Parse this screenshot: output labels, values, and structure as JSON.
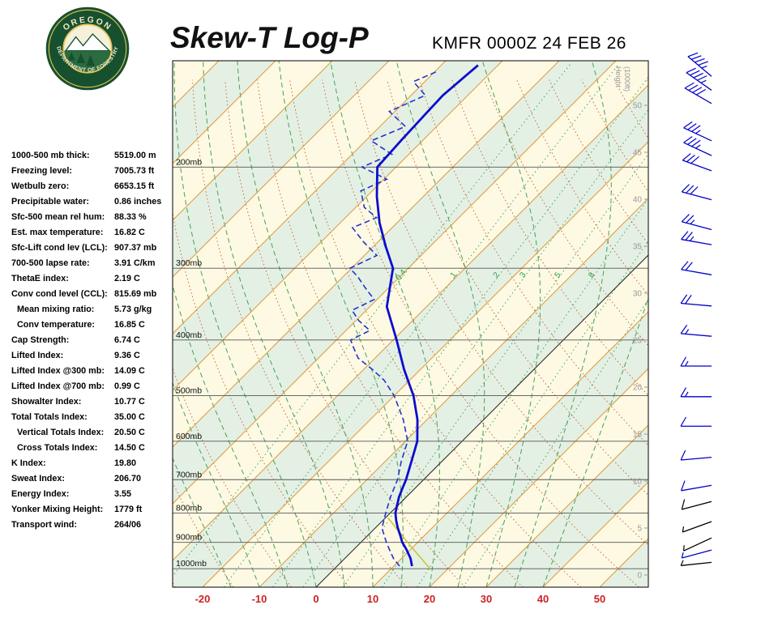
{
  "header": {
    "title": "Skew-T Log-P",
    "station": "KMFR 0000Z 24 FEB 26"
  },
  "logo": {
    "top_text": "OREGON",
    "bottom_text": "DEPARTMENT OF FORESTRY"
  },
  "indices": [
    {
      "label": "1000-500 mb thick:",
      "value": "5519.00 m",
      "indent": false
    },
    {
      "label": "Freezing level:",
      "value": "7005.73 ft",
      "indent": false
    },
    {
      "label": "Wetbulb zero:",
      "value": "6653.15 ft",
      "indent": false
    },
    {
      "label": "Precipitable water:",
      "value": "0.86 inches",
      "indent": false
    },
    {
      "label": "Sfc-500 mean rel hum:",
      "value": "88.33 %",
      "indent": false
    },
    {
      "label": "Est. max temperature:",
      "value": "16.82 C",
      "indent": false
    },
    {
      "label": "Sfc-Lift cond lev (LCL):",
      "value": "907.37 mb",
      "indent": false
    },
    {
      "label": "700-500 lapse rate:",
      "value": "3.91 C/km",
      "indent": false
    },
    {
      "label": "ThetaE index:",
      "value": "2.19 C",
      "indent": false
    },
    {
      "label": "Conv cond level (CCL):",
      "value": "815.69 mb",
      "indent": false
    },
    {
      "label": "Mean mixing ratio:",
      "value": "5.73 g/kg",
      "indent": true
    },
    {
      "label": "Conv temperature:",
      "value": "16.85 C",
      "indent": true
    },
    {
      "label": "Cap Strength:",
      "value": "6.74 C",
      "indent": false
    },
    {
      "label": "Lifted Index:",
      "value": "9.36 C",
      "indent": false
    },
    {
      "label": "Lifted Index @300 mb:",
      "value": "14.09 C",
      "indent": false
    },
    {
      "label": "Lifted Index @700 mb:",
      "value": "0.99 C",
      "indent": false
    },
    {
      "label": "Showalter Index:",
      "value": "10.77 C",
      "indent": false
    },
    {
      "label": "Total Totals Index:",
      "value": "35.00 C",
      "indent": false
    },
    {
      "label": "Vertical Totals Index:",
      "value": "20.50 C",
      "indent": true
    },
    {
      "label": "Cross Totals Index:",
      "value": "14.50 C",
      "indent": true
    },
    {
      "label": "K Index:",
      "value": "19.80",
      "indent": false
    },
    {
      "label": "Sweat Index:",
      "value": "206.70",
      "indent": false
    },
    {
      "label": "Energy Index:",
      "value": "3.55",
      "indent": false
    },
    {
      "label": "Yonker Mixing Height:",
      "value": "1779 ft",
      "indent": false
    },
    {
      "label": "Transport wind:",
      "value": "264/06",
      "indent": false
    }
  ],
  "chart_data": {
    "type": "skewt-log-p",
    "pressure_unit": "mb",
    "pressure_levels": [
      200,
      300,
      400,
      500,
      600,
      700,
      800,
      900,
      1000
    ],
    "temp_ticks": [
      -20,
      -10,
      0,
      10,
      20,
      30,
      40,
      50
    ],
    "height_labels": [
      0,
      5,
      10,
      15,
      20,
      25,
      30,
      35,
      40,
      45,
      50
    ],
    "height_axis_line1": "Height",
    "height_axis_line2": "(1000ft)",
    "mixing_ratio_lines": [
      0.4,
      1,
      2,
      3,
      5,
      8,
      12,
      20
    ],
    "mixing_ratio_labels": [
      0.4,
      1,
      2,
      3,
      5,
      8
    ],
    "temperature_profile": [
      [
        990,
        13.2
      ],
      [
        960,
        11.6
      ],
      [
        925,
        9.2
      ],
      [
        900,
        7.3
      ],
      [
        875,
        5.7
      ],
      [
        850,
        4.0
      ],
      [
        825,
        2.4
      ],
      [
        800,
        0.9
      ],
      [
        775,
        -0.2
      ],
      [
        750,
        -1.3
      ],
      [
        725,
        -2.2
      ],
      [
        700,
        -3.1
      ],
      [
        650,
        -5.4
      ],
      [
        600,
        -7.9
      ],
      [
        550,
        -11.7
      ],
      [
        500,
        -16.6
      ],
      [
        450,
        -22.9
      ],
      [
        400,
        -29.4
      ],
      [
        350,
        -37.0
      ],
      [
        300,
        -42.7
      ],
      [
        275,
        -47.8
      ],
      [
        250,
        -53.1
      ],
      [
        225,
        -58.2
      ],
      [
        200,
        -63.3
      ],
      [
        180,
        -63.8
      ],
      [
        160,
        -64.2
      ],
      [
        150,
        -64.4
      ],
      [
        140,
        -63.9
      ],
      [
        133,
        -63.5
      ]
    ],
    "dewpoint_profile": [
      [
        990,
        11.0
      ],
      [
        960,
        8.6
      ],
      [
        925,
        6.2
      ],
      [
        900,
        4.5
      ],
      [
        850,
        1.2
      ],
      [
        800,
        -0.8
      ],
      [
        750,
        -2.8
      ],
      [
        700,
        -4.6
      ],
      [
        650,
        -7.2
      ],
      [
        600,
        -9.6
      ],
      [
        550,
        -14.2
      ],
      [
        500,
        -20.0
      ],
      [
        470,
        -24.5
      ],
      [
        450,
        -28.5
      ],
      [
        430,
        -33.0
      ],
      [
        410,
        -36.0
      ],
      [
        400,
        -37.5
      ],
      [
        385,
        -35.8
      ],
      [
        370,
        -39.5
      ],
      [
        355,
        -42.5
      ],
      [
        340,
        -40.5
      ],
      [
        325,
        -44.0
      ],
      [
        310,
        -47.5
      ],
      [
        300,
        -50.3
      ],
      [
        285,
        -47.8
      ],
      [
        270,
        -52.5
      ],
      [
        255,
        -57.0
      ],
      [
        245,
        -54.5
      ],
      [
        235,
        -58.5
      ],
      [
        220,
        -62.0
      ],
      [
        210,
        -59.5
      ],
      [
        200,
        -66.0
      ],
      [
        190,
        -63.0
      ],
      [
        180,
        -69.0
      ],
      [
        170,
        -65.5
      ],
      [
        160,
        -71.0
      ],
      [
        150,
        -67.5
      ],
      [
        142,
        -72.0
      ],
      [
        136,
        -69.5
      ]
    ],
    "parcel": {
      "p_start": 1000,
      "t_start": 16.85,
      "p_end": 815.69
    },
    "wind_barbs_format": "[pressure_mb, dir_deg_from, speed_kt, color]",
    "wind_barbs": [
      [
        139,
        310,
        45,
        "blue"
      ],
      [
        147,
        305,
        45,
        "blue"
      ],
      [
        155,
        300,
        40,
        "blue"
      ],
      [
        180,
        295,
        35,
        "blue"
      ],
      [
        191,
        295,
        35,
        "blue"
      ],
      [
        203,
        290,
        30,
        "blue"
      ],
      [
        228,
        285,
        30,
        "blue"
      ],
      [
        257,
        285,
        25,
        "blue"
      ],
      [
        273,
        280,
        25,
        "blue"
      ],
      [
        308,
        280,
        20,
        "blue"
      ],
      [
        349,
        275,
        20,
        "blue"
      ],
      [
        394,
        275,
        15,
        "blue"
      ],
      [
        444,
        270,
        15,
        "blue"
      ],
      [
        502,
        270,
        15,
        "blue"
      ],
      [
        565,
        270,
        10,
        "blue"
      ],
      [
        640,
        265,
        10,
        "blue"
      ],
      [
        716,
        260,
        10,
        "blue"
      ],
      [
        764,
        255,
        8,
        "black"
      ],
      [
        828,
        250,
        7,
        "black"
      ],
      [
        884,
        245,
        5,
        "black"
      ],
      [
        928,
        255,
        5,
        "blue"
      ],
      [
        975,
        264,
        6,
        "black"
      ]
    ],
    "colors": {
      "band_cream": "#fdf9e3",
      "band_green": "#e4f0e4",
      "isotherm": "#dd9a3e",
      "zero_isotherm": "#222222",
      "dry_adiabat": "#c65a2e",
      "moist_adiabat": "#45a258",
      "mixing_ratio": "#2da04e",
      "temperature": "#0d0dcf",
      "dewpoint": "#2433cc",
      "parcel": "#c6c42f",
      "temp_axis": "#cc2222",
      "barb_blue": "#0000cd",
      "pressure_line": "#555555",
      "height_label": "#999999"
    }
  }
}
